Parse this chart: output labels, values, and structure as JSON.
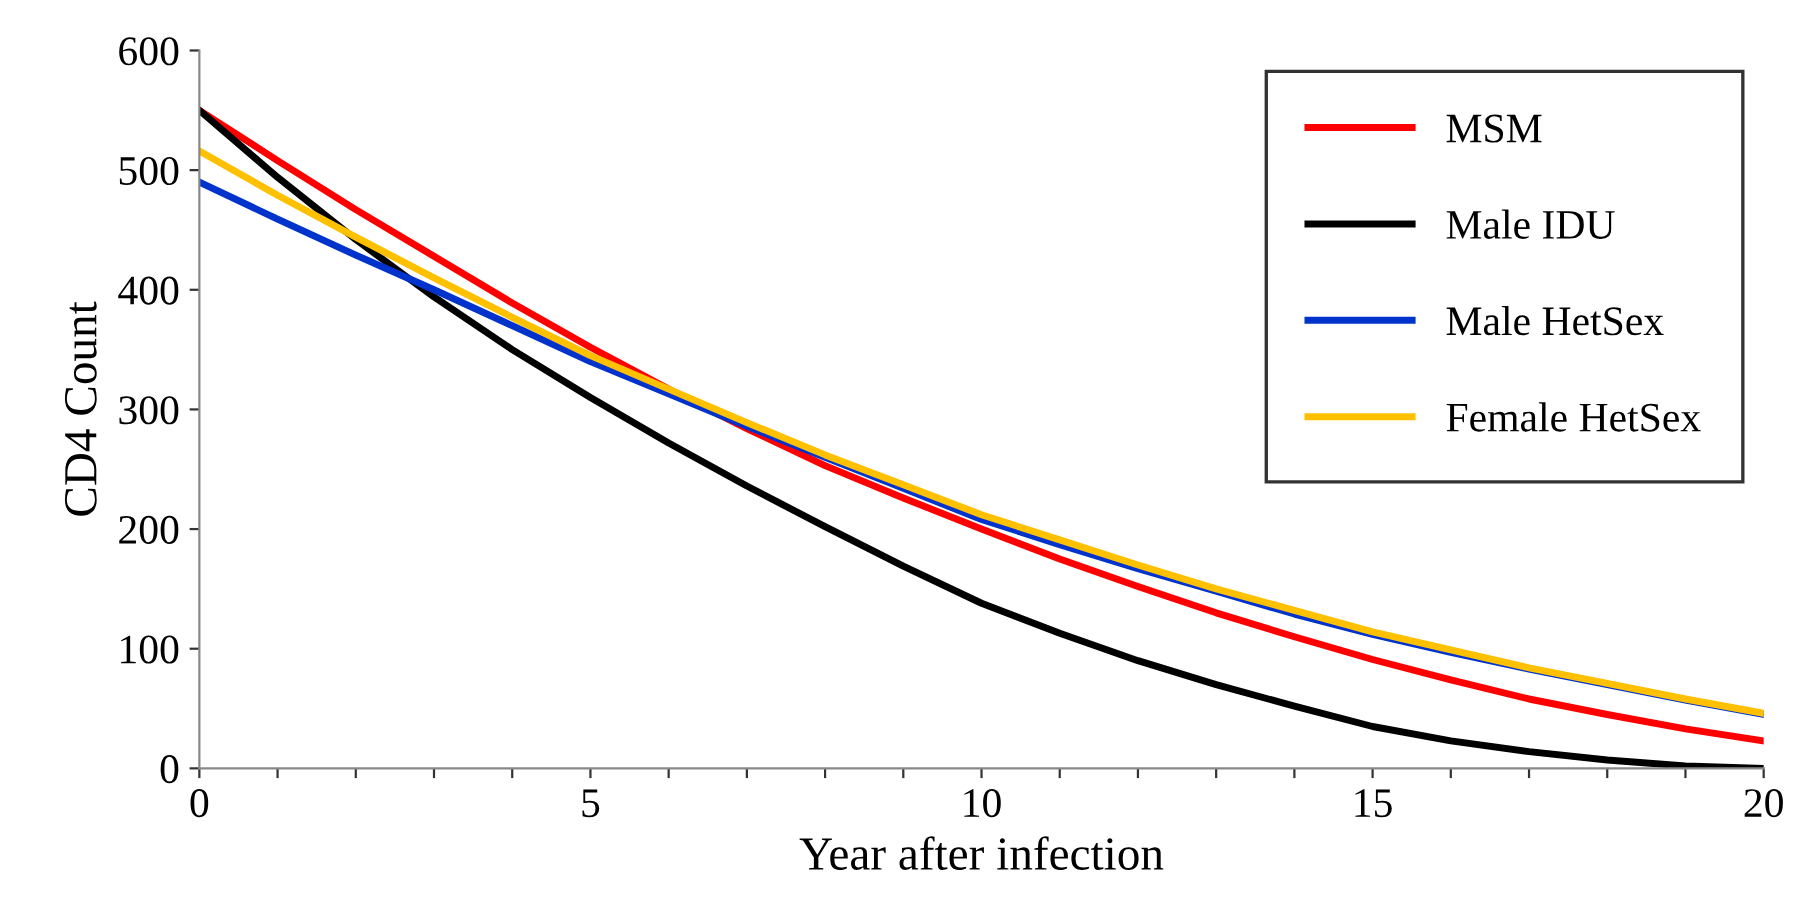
{
  "chart_data": {
    "type": "line",
    "xlabel": "Year after infection",
    "ylabel": "CD4 Count",
    "x": [
      0,
      1,
      2,
      3,
      4,
      5,
      6,
      7,
      8,
      9,
      10,
      11,
      12,
      13,
      14,
      15,
      16,
      17,
      18,
      19,
      20
    ],
    "series": [
      {
        "name": "MSM",
        "color": "#ff0000",
        "values": [
          550,
          508,
          467,
          428,
          389,
          352,
          317,
          284,
          253,
          226,
          200,
          175,
          152,
          130,
          110,
          91,
          74,
          58,
          45,
          33,
          23
        ]
      },
      {
        "name": "Male IDU",
        "color": "#000000",
        "values": [
          550,
          494,
          442,
          394,
          350,
          310,
          272,
          236,
          202,
          169,
          138,
          113,
          90,
          70,
          52,
          35,
          23,
          14,
          7,
          2,
          0
        ]
      },
      {
        "name": "Male HetSex",
        "color": "#0033cc",
        "values": [
          490,
          459,
          429,
          400,
          370,
          340,
          313,
          286,
          260,
          234,
          208,
          187,
          167,
          148,
          129,
          112,
          97,
          83,
          70,
          57,
          45
        ]
      },
      {
        "name": "Female HetSex",
        "color": "#ffc000",
        "values": [
          516,
          479,
          444,
          410,
          377,
          345,
          317,
          289,
          262,
          237,
          212,
          191,
          170,
          150,
          132,
          114,
          99,
          84,
          71,
          58,
          46
        ]
      }
    ],
    "xlim": [
      0,
      20
    ],
    "ylim": [
      0,
      600
    ],
    "xticks": [
      0,
      {
        "value": 1,
        "label": null
      },
      {
        "value": 2,
        "label": null
      },
      {
        "value": 3,
        "label": null
      },
      {
        "value": 4,
        "label": null
      },
      5,
      {
        "value": 6,
        "label": null
      },
      {
        "value": 7,
        "label": null
      },
      {
        "value": 8,
        "label": null
      },
      {
        "value": 9,
        "label": null
      },
      10,
      {
        "value": 11,
        "label": null
      },
      {
        "value": 12,
        "label": null
      },
      {
        "value": 13,
        "label": null
      },
      {
        "value": 14,
        "label": null
      },
      15,
      {
        "value": 16,
        "label": null
      },
      {
        "value": 17,
        "label": null
      },
      {
        "value": 18,
        "label": null
      },
      {
        "value": 19,
        "label": null
      },
      20
    ],
    "yticks": [
      0,
      100,
      200,
      300,
      400,
      500,
      600
    ],
    "grid": false,
    "legend": "top right",
    "marker": "none",
    "line_style": "solid"
  }
}
